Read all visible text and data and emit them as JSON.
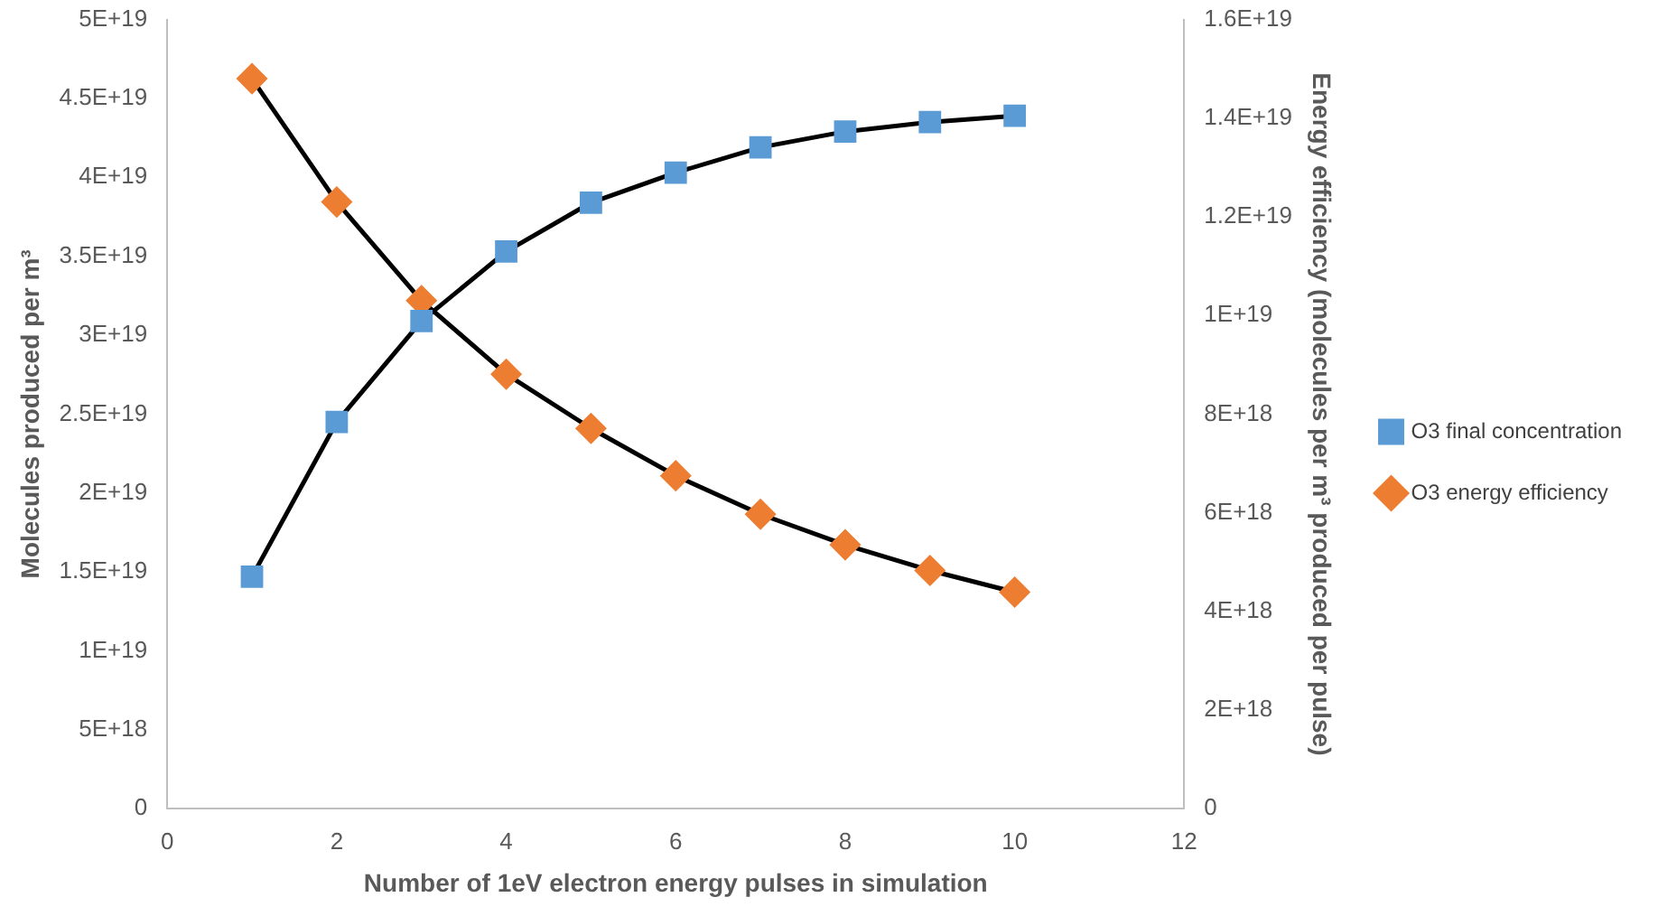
{
  "chart_data": {
    "type": "line",
    "xlabel": "Number of 1eV electron energy pulses in simulation",
    "ylabel": "Molecules produced per m³",
    "y2label": "Energy efficiency (molecules per m³ produced per pulse)",
    "x": [
      1,
      2,
      3,
      4,
      5,
      6,
      7,
      8,
      9,
      10
    ],
    "series": [
      {
        "name": "O3 final concentration",
        "color": "#5b9bd5",
        "marker": "square",
        "values": [
          1.47e+19,
          2.45e+19,
          3.09e+19,
          3.53e+19,
          3.84e+19,
          4.03e+19,
          4.19e+19,
          4.29e+19,
          4.35e+19,
          4.39e+19
        ]
      },
      {
        "name": "O3 energy efficiency",
        "color": "#ed7d31",
        "marker": "diamond",
        "axis": "y2",
        "values": [
          1.48e+19,
          1.23e+19,
          1.03e+19,
          8.81e+18,
          7.71e+18,
          6.75e+18,
          5.97e+18,
          5.35e+18,
          4.83e+18,
          4.39e+18
        ]
      }
    ],
    "xlim": [
      0,
      12
    ],
    "xticks": [
      0,
      2,
      4,
      6,
      8,
      10,
      12
    ],
    "ylim": [
      0,
      5e+19
    ],
    "yticks": [
      0,
      {
        "value": 5e+18,
        "label": "5E+18"
      },
      {
        "value": 1e+19,
        "label": "1E+19"
      },
      {
        "value": 1.5e+19,
        "label": "1.5E+19"
      },
      {
        "value": 2e+19,
        "label": "2E+19"
      },
      {
        "value": 2.5e+19,
        "label": "2.5E+19"
      },
      {
        "value": 3e+19,
        "label": "3E+19"
      },
      {
        "value": 3.5e+19,
        "label": "3.5E+19"
      },
      {
        "value": 4e+19,
        "label": "4E+19"
      },
      {
        "value": 4.5e+19,
        "label": "4.5E+19"
      },
      {
        "value": 5e+19,
        "label": "5E+19"
      }
    ],
    "y2lim": [
      0,
      1.6e+19
    ],
    "y2ticks": [
      0,
      {
        "value": 2e+18,
        "label": "2E+18"
      },
      {
        "value": 4e+18,
        "label": "4E+18"
      },
      {
        "value": 6e+18,
        "label": "6E+18"
      },
      {
        "value": 8e+18,
        "label": "8E+18"
      },
      {
        "value": 1e+19,
        "label": "1E+19"
      },
      {
        "value": 1.2e+19,
        "label": "1.2E+19"
      },
      {
        "value": 1.4e+19,
        "label": "1.4E+19"
      },
      {
        "value": 1.6e+19,
        "label": "1.6E+19"
      }
    ],
    "grid": false,
    "legend": "right",
    "line_style": "solid"
  }
}
